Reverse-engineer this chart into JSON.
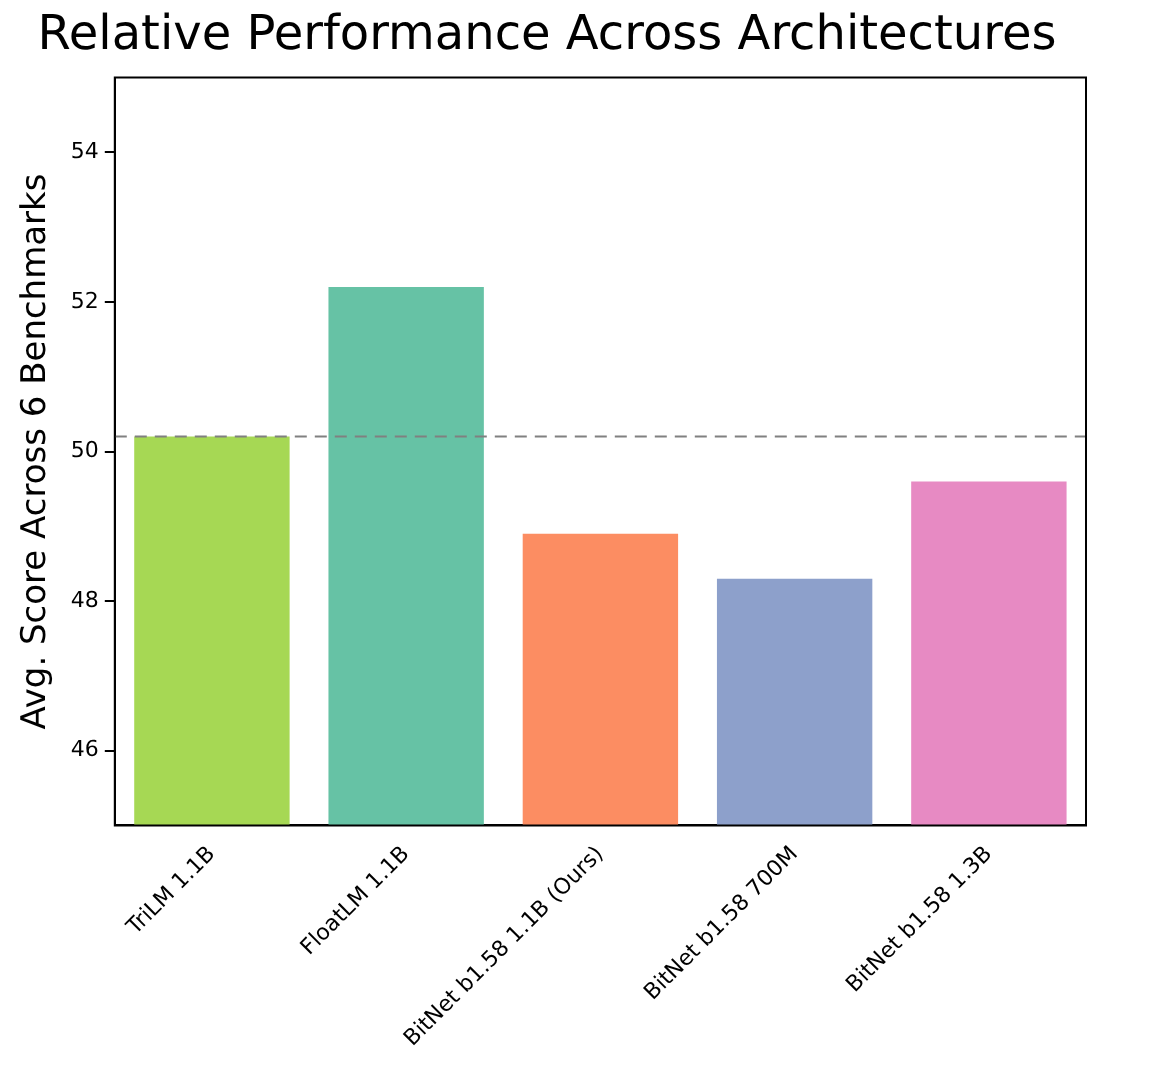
{
  "chart_data": {
    "type": "bar",
    "title": "Relative Performance Across Architectures",
    "ylabel": "Avg. Score Across 6 Benchmarks",
    "categories": [
      "TriLM 1.1B",
      "FloatLM 1.1B",
      "BitNet b1.58 1.1B (Ours)",
      "BitNet b1.58 700M",
      "BitNet b1.58 1.3B"
    ],
    "values": [
      50.2,
      52.2,
      48.9,
      48.3,
      49.6
    ],
    "colors": [
      "#a6d854",
      "#66c2a5",
      "#fc8d62",
      "#8da0cb",
      "#e78ac3"
    ],
    "ylim": [
      45,
      55
    ],
    "yticks": [
      46,
      48,
      50,
      52,
      54
    ],
    "ref_lines": [
      {
        "axis": "y",
        "value": 50.2,
        "color": "#808080",
        "line_style": "dashed"
      }
    ],
    "grid": false,
    "legend": false
  }
}
